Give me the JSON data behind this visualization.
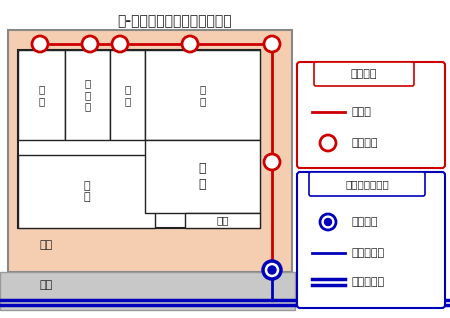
{
  "title": "図-「工事と維持管理の範囲」",
  "bg_peach": "#f5cdb0",
  "road_color": "#c8c8c8",
  "road_edge": "#999999",
  "red": "#cc0000",
  "blue": "#0000bb",
  "black": "#222222",
  "white": "#ffffff",
  "legend1_title": "個人負担",
  "legend1_line": "排水管",
  "legend1_circle": "宅内ます",
  "legend2_title": "市（下水道課）",
  "legend2_circle": "公共ます",
  "legend2_line1": "取り付け管",
  "legend2_line2": "下水道本管",
  "label_chitsu": "宅地",
  "label_road": "道路",
  "room_labels": [
    "風\n呂",
    "洗\n面\n所",
    "便\n所",
    "台\n所",
    "寝\n室",
    "居\n間",
    "玄関"
  ]
}
